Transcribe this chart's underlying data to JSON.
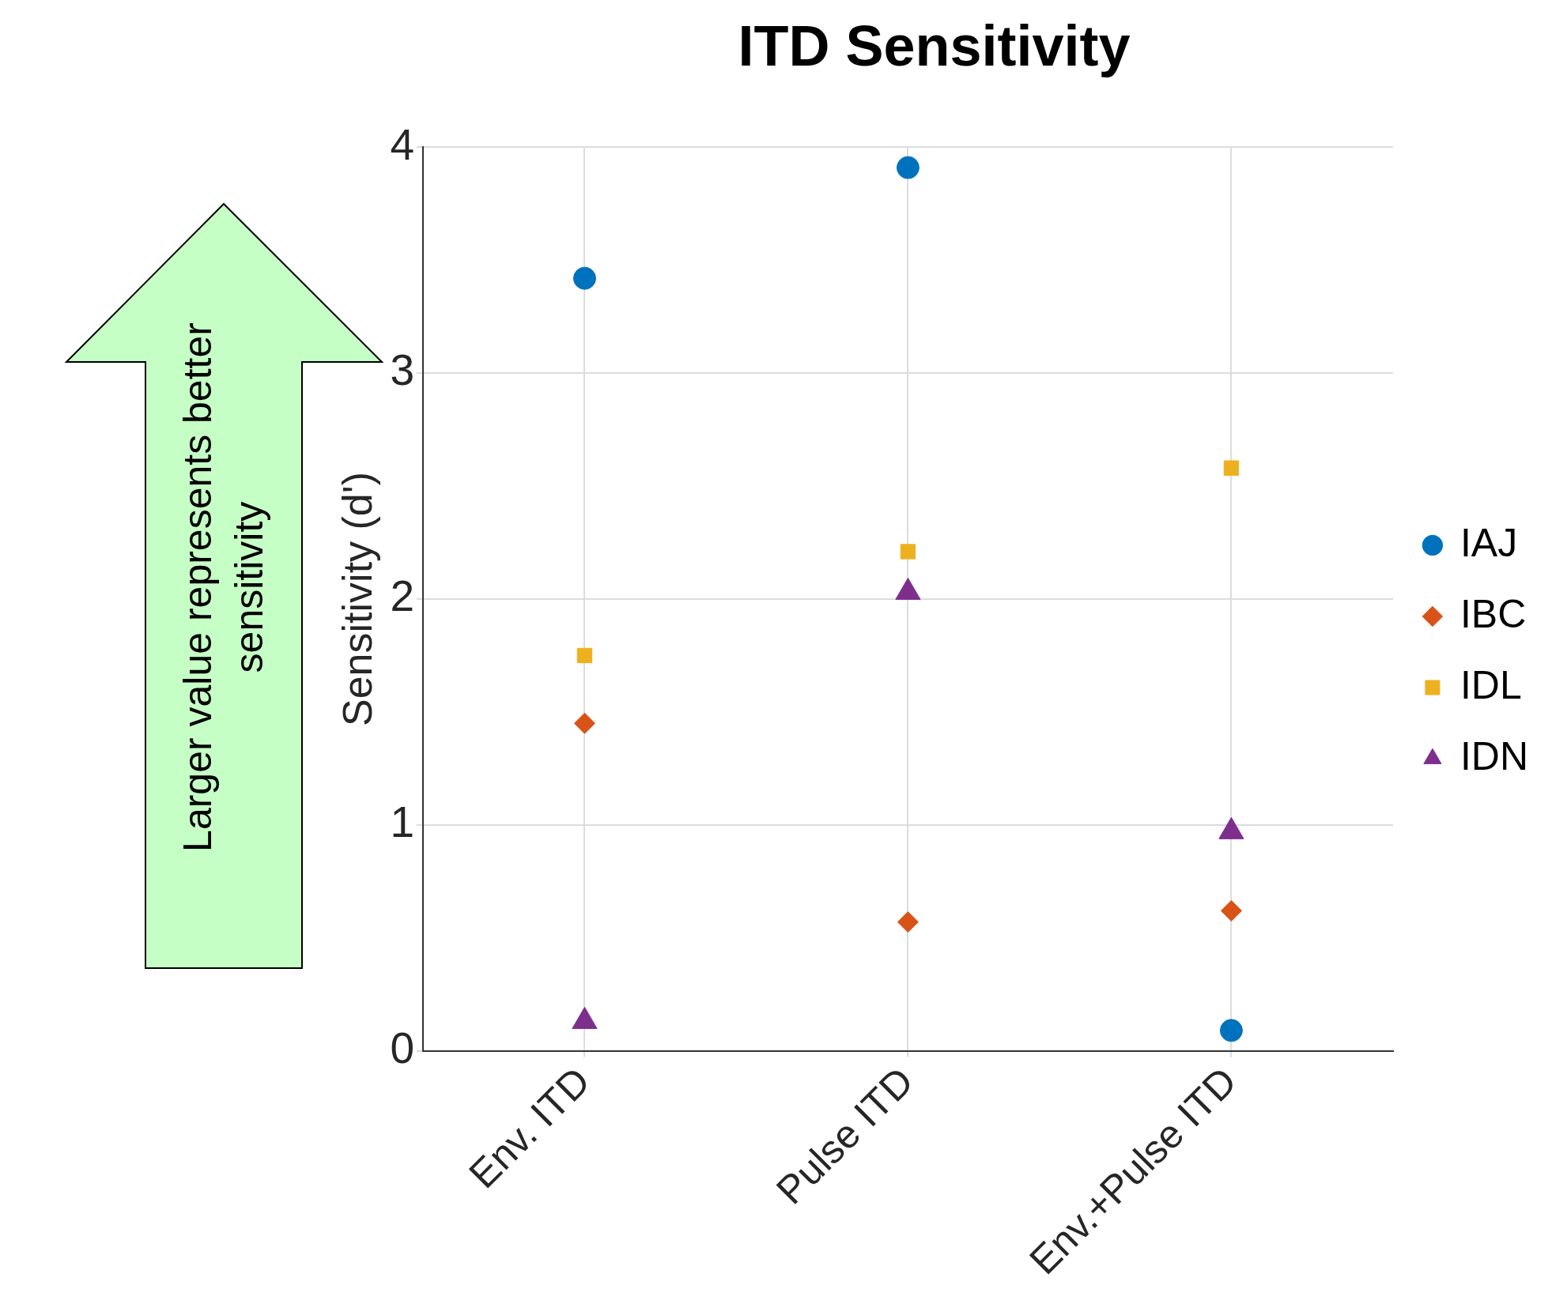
{
  "chart_data": {
    "type": "scatter",
    "title": "ITD Sensitivity",
    "ylabel": "Sensitivity (d')",
    "categories": [
      "Env. ITD",
      "Pulse ITD",
      "Env.+Pulse ITD"
    ],
    "series": [
      {
        "name": "IAJ",
        "color": "#0072bd",
        "marker": "circle",
        "values": [
          3.42,
          3.91,
          0.09
        ]
      },
      {
        "name": "IBC",
        "color": "#d95319",
        "marker": "diamond",
        "values": [
          1.45,
          0.57,
          0.62
        ]
      },
      {
        "name": "IDL",
        "color": "#edb120",
        "marker": "square",
        "values": [
          1.75,
          2.21,
          2.58
        ]
      },
      {
        "name": "IDN",
        "color": "#7e2f8e",
        "marker": "triangle",
        "values": [
          0.13,
          2.03,
          0.97
        ]
      }
    ],
    "ylim": [
      0,
      4
    ],
    "yticks": [
      0,
      1,
      2,
      3,
      4
    ],
    "grid": true,
    "legend": "right",
    "annotations": [
      "Larger value represents better sensitivity"
    ]
  }
}
